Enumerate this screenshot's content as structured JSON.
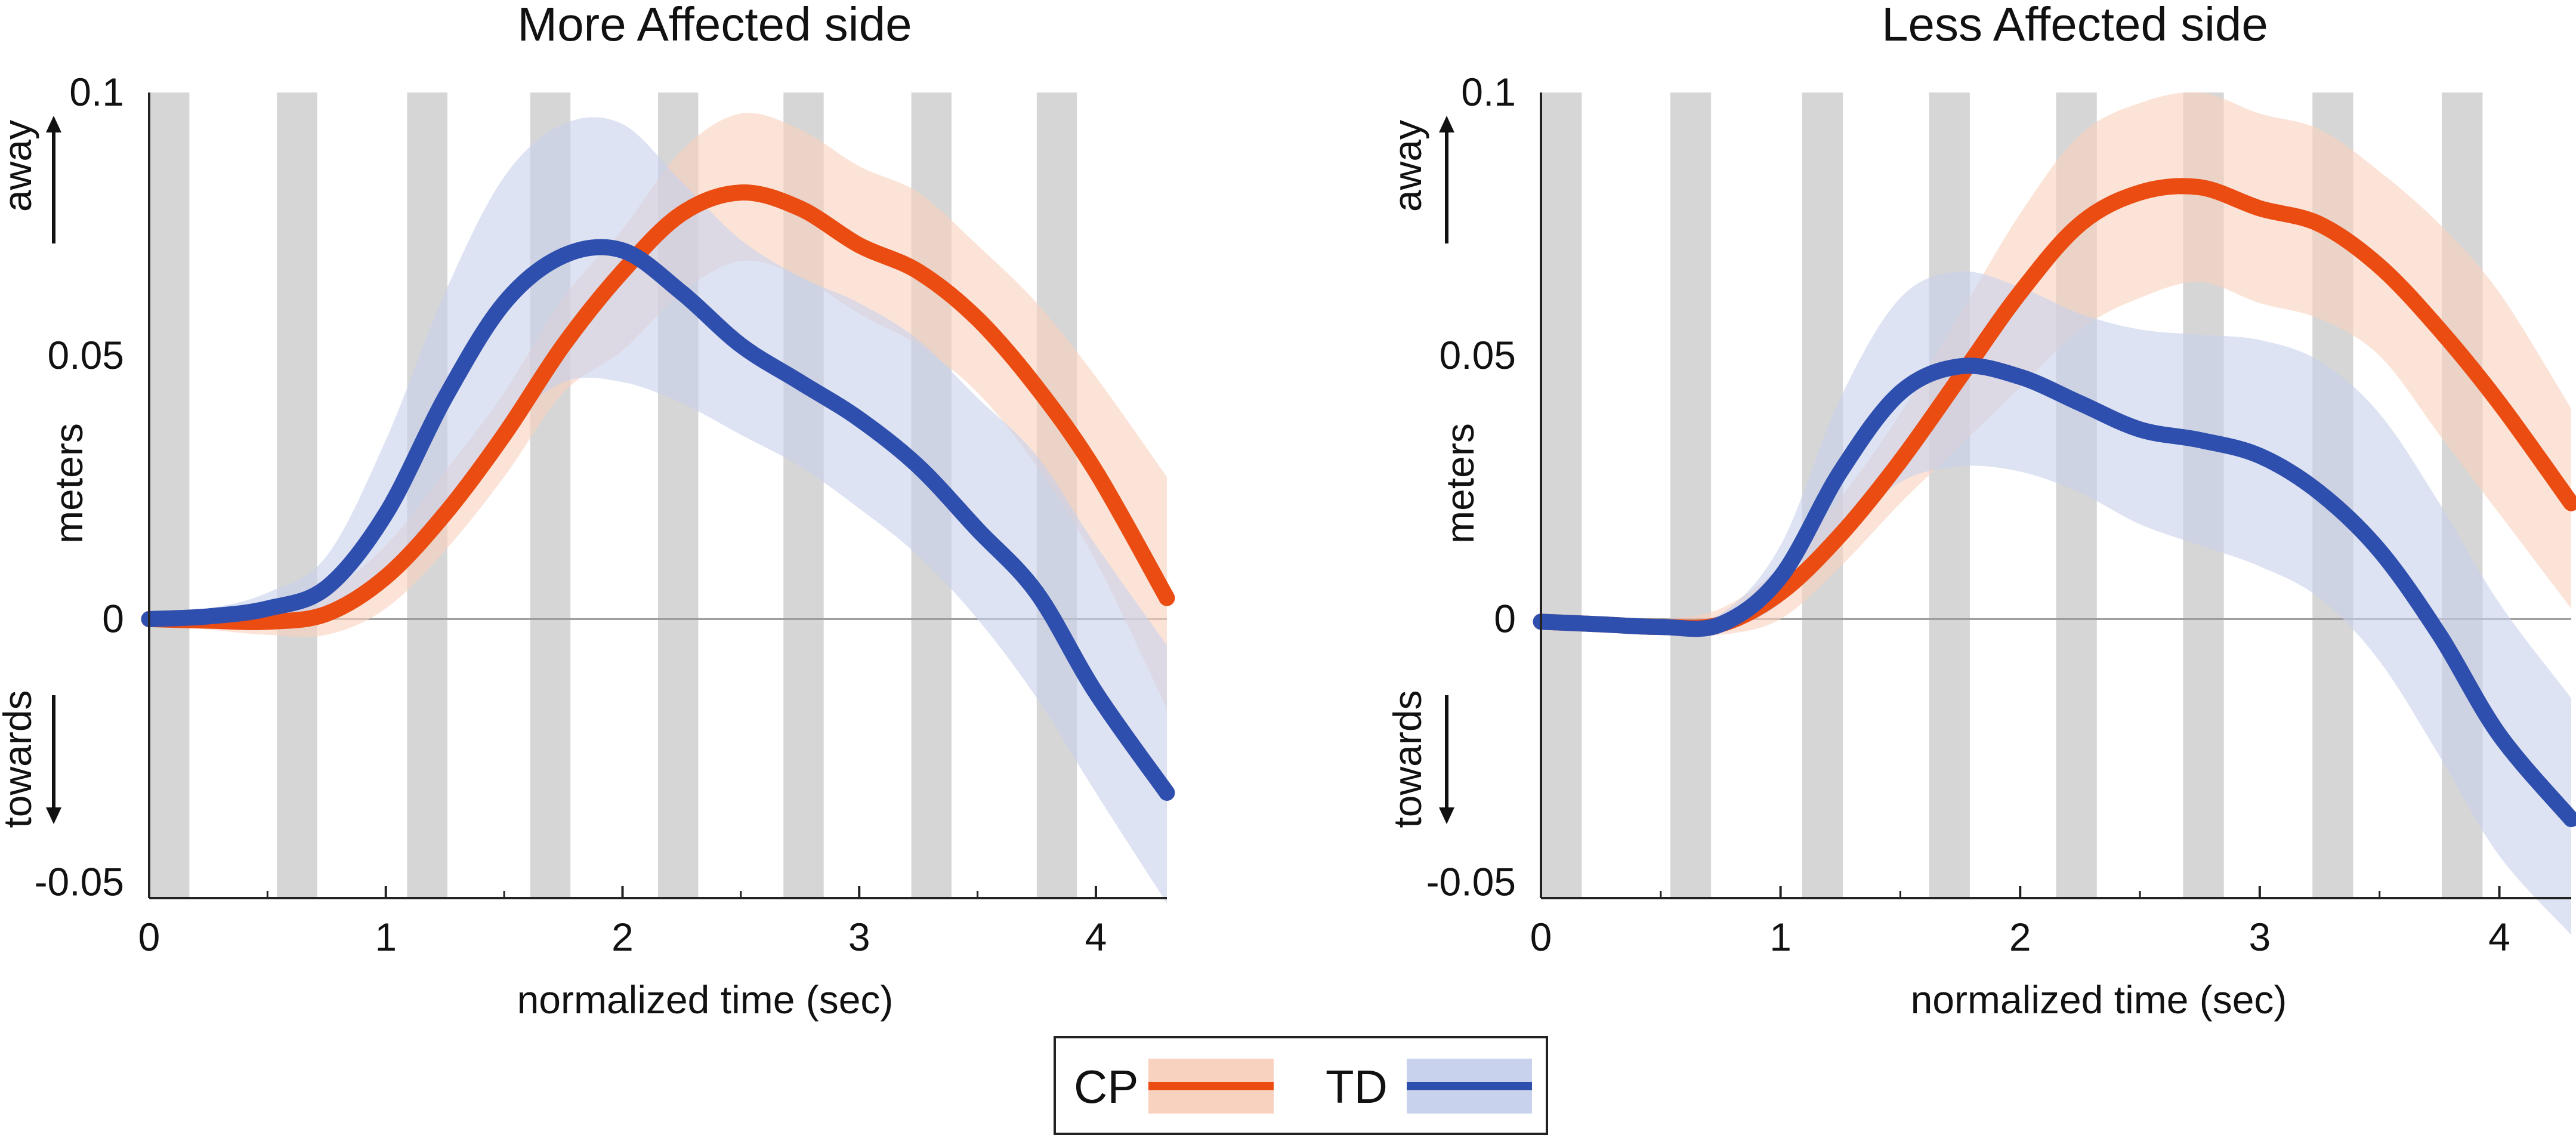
{
  "colors": {
    "cp_line": "#ea4c12",
    "cp_band": "#f8d2bf",
    "td_line": "#2f4fae",
    "td_band": "#c8d2ec",
    "gray_bar": "#bdbdbd",
    "zero_line": "#9a9a9a",
    "axis": "#222222"
  },
  "legend": {
    "items": [
      {
        "label": "CP",
        "color_key": "cp_line",
        "band_key": "cp_band"
      },
      {
        "label": "TD",
        "color_key": "td_line",
        "band_key": "td_band"
      }
    ]
  },
  "chart_data": [
    {
      "type": "line",
      "title": "More Affected side",
      "xlabel": "normalized time (sec)",
      "ylabel": "meters",
      "direction_labels": {
        "up": "away",
        "down": "towards"
      },
      "xlim": [
        0,
        4.3
      ],
      "ylim": [
        -0.053,
        0.1
      ],
      "xticks": [
        0,
        1,
        2,
        3,
        4
      ],
      "xtick_labels": [
        "0",
        "1",
        "2",
        "3",
        "4"
      ],
      "yticks": [
        0.1,
        0.05,
        0,
        -0.05
      ],
      "ytick_labels": [
        "0.1",
        "0.05",
        "0",
        "-0.05"
      ],
      "x_minor_ticks": [
        0.5,
        1.5,
        2.5,
        3.5
      ],
      "shaded_intervals": [
        [
          0,
          0.17
        ],
        [
          0.54,
          0.71
        ],
        [
          1.09,
          1.26
        ],
        [
          1.61,
          1.78
        ],
        [
          2.15,
          2.32
        ],
        [
          2.68,
          2.85
        ],
        [
          3.22,
          3.39
        ],
        [
          3.75,
          3.92
        ]
      ],
      "x": [
        0,
        0.25,
        0.5,
        0.75,
        1.0,
        1.25,
        1.5,
        1.75,
        2.0,
        2.25,
        2.5,
        2.75,
        3.0,
        3.25,
        3.5,
        3.75,
        4.0,
        4.3
      ],
      "series": [
        {
          "name": "CP",
          "values": [
            0,
            -0.0003,
            -0.0005,
            0.001,
            0.008,
            0.02,
            0.035,
            0.052,
            0.066,
            0.077,
            0.081,
            0.078,
            0.071,
            0.066,
            0.057,
            0.044,
            0.028,
            0.004
          ],
          "lower": [
            -0.001,
            -0.002,
            -0.003,
            -0.003,
            0.002,
            0.013,
            0.027,
            0.043,
            0.051,
            0.062,
            0.068,
            0.065,
            0.058,
            0.052,
            0.043,
            0.029,
            0.011,
            -0.017
          ],
          "upper": [
            0.001,
            0.001,
            0.002,
            0.005,
            0.014,
            0.028,
            0.043,
            0.061,
            0.074,
            0.089,
            0.096,
            0.093,
            0.086,
            0.081,
            0.071,
            0.06,
            0.046,
            0.027
          ]
        },
        {
          "name": "TD",
          "values": [
            0,
            0.0005,
            0.002,
            0.006,
            0.02,
            0.042,
            0.06,
            0.069,
            0.07,
            0.062,
            0.052,
            0.045,
            0.038,
            0.029,
            0.017,
            0.005,
            -0.014,
            -0.033
          ],
          "lower": [
            -0.001,
            -0.001,
            -0.001,
            0.001,
            0.009,
            0.022,
            0.036,
            0.045,
            0.045,
            0.041,
            0.035,
            0.029,
            0.021,
            0.012,
            0.0,
            -0.015,
            -0.033,
            -0.054
          ],
          "upper": [
            0.001,
            0.002,
            0.005,
            0.012,
            0.034,
            0.062,
            0.084,
            0.094,
            0.094,
            0.083,
            0.072,
            0.065,
            0.06,
            0.053,
            0.042,
            0.031,
            0.014,
            -0.005
          ]
        }
      ]
    },
    {
      "type": "line",
      "title": "Less Affected side",
      "xlabel": "normalized time (sec)",
      "ylabel": "meters",
      "direction_labels": {
        "up": "away",
        "down": "towards"
      },
      "xlim": [
        0,
        4.3
      ],
      "ylim": [
        -0.053,
        0.1
      ],
      "xticks": [
        0,
        1,
        2,
        3,
        4
      ],
      "xtick_labels": [
        "0",
        "1",
        "2",
        "3",
        "4"
      ],
      "yticks": [
        0.1,
        0.05,
        0,
        -0.05
      ],
      "ytick_labels": [
        "0.1",
        "0.05",
        "0",
        "-0.05"
      ],
      "x_minor_ticks": [
        0.5,
        1.5,
        2.5,
        3.5
      ],
      "shaded_intervals": [
        [
          0,
          0.17
        ],
        [
          0.54,
          0.71
        ],
        [
          1.09,
          1.26
        ],
        [
          1.62,
          1.79
        ],
        [
          2.15,
          2.32
        ],
        [
          2.68,
          2.85
        ],
        [
          3.22,
          3.39
        ],
        [
          3.76,
          3.93
        ]
      ],
      "x": [
        0,
        0.25,
        0.5,
        0.75,
        1.0,
        1.25,
        1.5,
        1.75,
        2.0,
        2.25,
        2.5,
        2.75,
        3.0,
        3.25,
        3.5,
        3.75,
        4.0,
        4.3
      ],
      "series": [
        {
          "name": "CP",
          "values": [
            -0.0005,
            -0.001,
            -0.0015,
            -0.001,
            0.005,
            0.016,
            0.03,
            0.046,
            0.062,
            0.075,
            0.081,
            0.082,
            0.078,
            0.075,
            0.067,
            0.055,
            0.041,
            0.022
          ],
          "lower": [
            -0.001,
            -0.002,
            -0.003,
            -0.003,
            0.0,
            0.01,
            0.022,
            0.033,
            0.044,
            0.055,
            0.061,
            0.064,
            0.06,
            0.057,
            0.05,
            0.035,
            0.02,
            0.002
          ],
          "upper": [
            0.0,
            0.0,
            0.0,
            0.002,
            0.01,
            0.023,
            0.039,
            0.058,
            0.077,
            0.092,
            0.098,
            0.1,
            0.096,
            0.093,
            0.085,
            0.075,
            0.062,
            0.04
          ]
        },
        {
          "name": "TD",
          "values": [
            -0.0005,
            -0.001,
            -0.0015,
            -0.001,
            0.008,
            0.028,
            0.043,
            0.048,
            0.046,
            0.041,
            0.036,
            0.034,
            0.031,
            0.024,
            0.013,
            -0.003,
            -0.022,
            -0.038
          ],
          "lower": [
            -0.001,
            -0.002,
            -0.002,
            -0.002,
            0.003,
            0.016,
            0.026,
            0.029,
            0.028,
            0.024,
            0.018,
            0.014,
            0.01,
            0.004,
            -0.008,
            -0.026,
            -0.045,
            -0.06
          ],
          "upper": [
            0.0,
            0.0,
            0.0,
            0.001,
            0.014,
            0.042,
            0.061,
            0.066,
            0.063,
            0.058,
            0.055,
            0.054,
            0.053,
            0.049,
            0.039,
            0.022,
            0.003,
            -0.015
          ]
        }
      ]
    }
  ]
}
